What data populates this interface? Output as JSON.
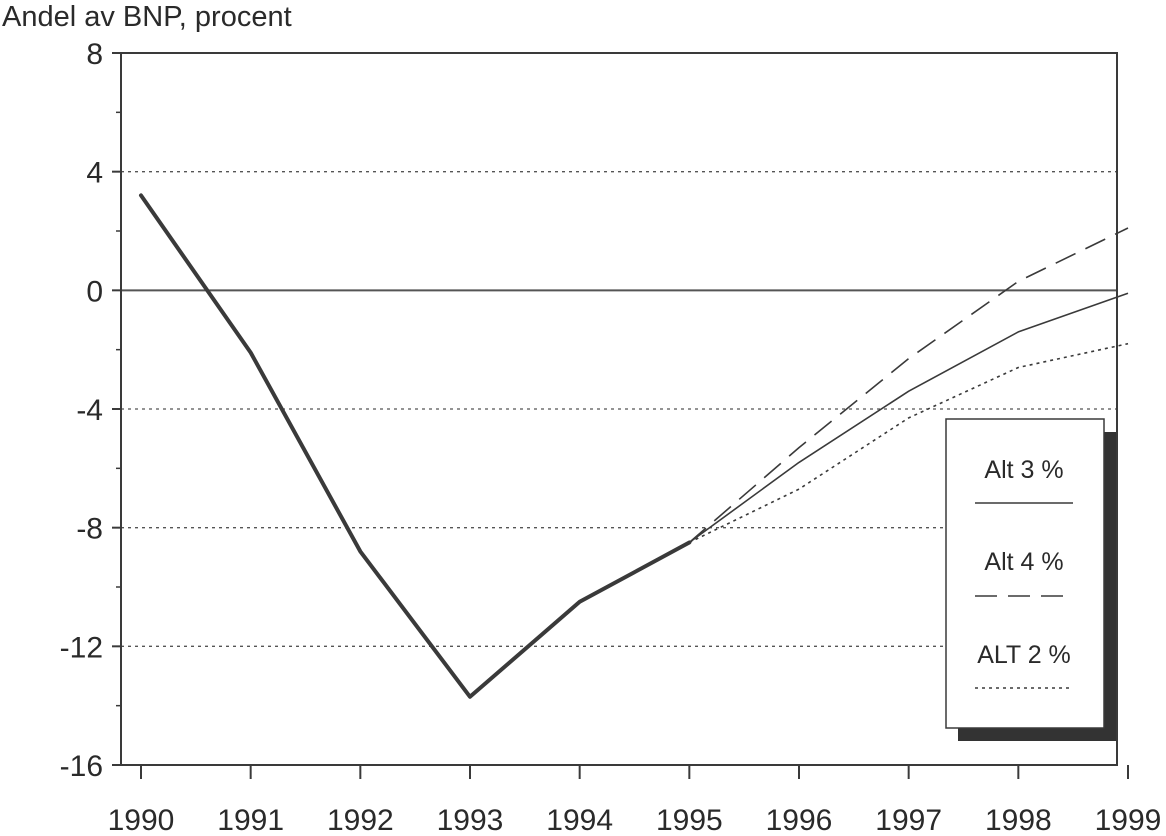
{
  "chart_data": {
    "type": "line",
    "title": "",
    "ylabel": "Andel av BNP, procent",
    "xlabel": "",
    "x": [
      1990,
      1991,
      1992,
      1993,
      1994,
      1995,
      1996,
      1997,
      1998,
      1999
    ],
    "x_tick_labels": [
      "1990",
      "1991",
      "1992",
      "1993",
      "1994",
      "1995",
      "1996",
      "1997",
      "1998",
      "1999"
    ],
    "ylim": [
      -16,
      8
    ],
    "y_ticks": [
      8,
      4,
      0,
      -4,
      -8,
      -12,
      -16
    ],
    "y_tick_labels": [
      "8",
      "4",
      "0",
      "-4",
      "-8",
      "-12",
      "-16"
    ],
    "grid": "horizontal dotted at labeled ticks",
    "historical": {
      "name": "",
      "x": [
        1990,
        1991,
        1992,
        1993,
        1994,
        1995
      ],
      "values": [
        3.2,
        -2.1,
        -8.8,
        -13.7,
        -10.5,
        -8.5
      ]
    },
    "series": [
      {
        "name": "Alt 3 %",
        "style": "solid",
        "x": [
          1995,
          1996,
          1997,
          1998,
          1999
        ],
        "values": [
          -8.5,
          -5.8,
          -3.4,
          -1.4,
          -0.1
        ]
      },
      {
        "name": "Alt 4 %",
        "style": "dashed",
        "x": [
          1995,
          1996,
          1997,
          1998,
          1999
        ],
        "values": [
          -8.5,
          -5.3,
          -2.3,
          0.3,
          2.1
        ]
      },
      {
        "name": "ALT 2 %",
        "style": "dotted",
        "x": [
          1995,
          1996,
          1997,
          1998,
          1999
        ],
        "values": [
          -8.5,
          -6.7,
          -4.3,
          -2.6,
          -1.8
        ]
      }
    ],
    "legend": {
      "placement": "right",
      "entries": [
        "Alt 3 %",
        "Alt 4 %",
        "ALT 2 %"
      ]
    },
    "colors": {
      "line": "#3a3a3a",
      "grid": "#555555",
      "legend_shadow": "#333333"
    }
  }
}
